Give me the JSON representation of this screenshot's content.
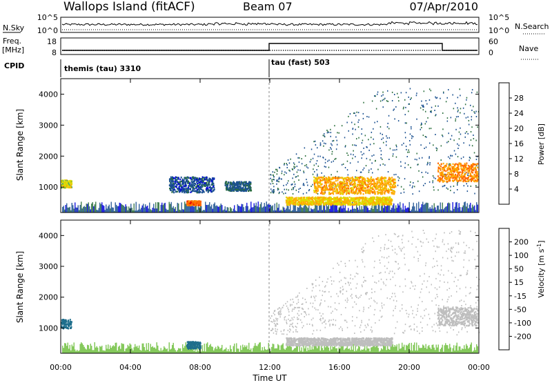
{
  "header": {
    "station": "Wallops Island (fitACF)",
    "beam": "Beam 07",
    "date": "07/Apr/2010"
  },
  "left_labels": {
    "nsky": "N.Sky",
    "freq_line1": "Freq.",
    "freq_line2": "[MHz]",
    "cpid": "CPID"
  },
  "right_labels": {
    "nsearch": "N.Search",
    "nave": "Nave"
  },
  "noise_panel": {
    "left_ticks": [
      "10^5",
      "10^0"
    ],
    "right_ticks": [
      "10^5",
      "10^0"
    ]
  },
  "freq_panel": {
    "left_ticks": [
      "18",
      "8"
    ],
    "right_ticks": [
      "60",
      "0"
    ]
  },
  "cpid_panel": {
    "mode1": "themis (tau) 3310",
    "mode2": "tau (fast) 503"
  },
  "power_colorbar": {
    "label": "Power [dB]",
    "ticks": [
      "28",
      "24",
      "20",
      "16",
      "12",
      "8",
      "4"
    ],
    "colors": [
      "#e60000",
      "#ff6a00",
      "#ffaa00",
      "#dddd00",
      "#55aa55",
      "#2a6e3c",
      "#1a5090",
      "#0000dd"
    ]
  },
  "velocity_colorbar": {
    "label_main": "Velocity [m s",
    "label_sup": "-1",
    "label_end": "]",
    "ticks": [
      "200",
      "100",
      "50",
      "15",
      "-15",
      "-50",
      "-100",
      "-200"
    ],
    "colors": [
      "#1c3fa8",
      "#1e6e8c",
      "#2e8a3a",
      "#70c040",
      "#bebebe",
      "#ffc040",
      "#ff8a00",
      "#ff4400",
      "#dd0000"
    ]
  },
  "chart_data": [
    {
      "type": "heatmap",
      "name": "power",
      "ylabel": "Slant Range [km]",
      "yticks": [
        1000,
        2000,
        3000,
        4000
      ],
      "ylim": [
        180,
        4500
      ],
      "xlim": [
        0,
        24
      ],
      "xticks": [
        "00:00",
        "04:00",
        "08:00",
        "12:00",
        "16:00",
        "20:00",
        "00:00"
      ],
      "colorbar_label": "Power [dB]",
      "features": [
        {
          "t0": 7.2,
          "t1": 8.0,
          "r0": 430,
          "r1": 580,
          "value": 26
        },
        {
          "t0": 6.2,
          "t1": 8.8,
          "r0": 850,
          "r1": 1350,
          "value": 6
        },
        {
          "t0": 9.4,
          "t1": 10.9,
          "r0": 900,
          "r1": 1200,
          "value": 7
        },
        {
          "t0": 12.9,
          "t1": 19.0,
          "r0": 450,
          "r1": 700,
          "value": 20
        },
        {
          "t0": 14.5,
          "t1": 19.2,
          "r0": 800,
          "r1": 1350,
          "value": 22
        },
        {
          "t0": 21.6,
          "t1": 23.9,
          "r0": 1200,
          "r1": 1800,
          "value": 24
        },
        {
          "t0": 0.0,
          "t1": 0.6,
          "r0": 1000,
          "r1": 1250,
          "value": 18
        }
      ]
    },
    {
      "type": "heatmap",
      "name": "velocity",
      "ylabel": "Slant Range [km]",
      "yticks": [
        1000,
        2000,
        3000,
        4000
      ],
      "ylim": [
        180,
        4500
      ],
      "xlim": [
        0,
        24
      ],
      "xlabel": "Time UT",
      "xticks": [
        "00:00",
        "04:00",
        "08:00",
        "12:00",
        "16:00",
        "20:00",
        "00:00"
      ],
      "colorbar_label": "Velocity [m s-1]",
      "features": [
        {
          "t0": 7.2,
          "t1": 8.0,
          "r0": 350,
          "r1": 580,
          "value": 150
        },
        {
          "t0": 0.0,
          "t1": 0.6,
          "r0": 1000,
          "r1": 1300,
          "value": 120
        },
        {
          "t0": 12.9,
          "t1": 19.0,
          "r0": 450,
          "r1": 700,
          "value": 0
        },
        {
          "t0": 21.6,
          "t1": 23.9,
          "r0": 1100,
          "r1": 1700,
          "value": 0
        }
      ]
    }
  ]
}
